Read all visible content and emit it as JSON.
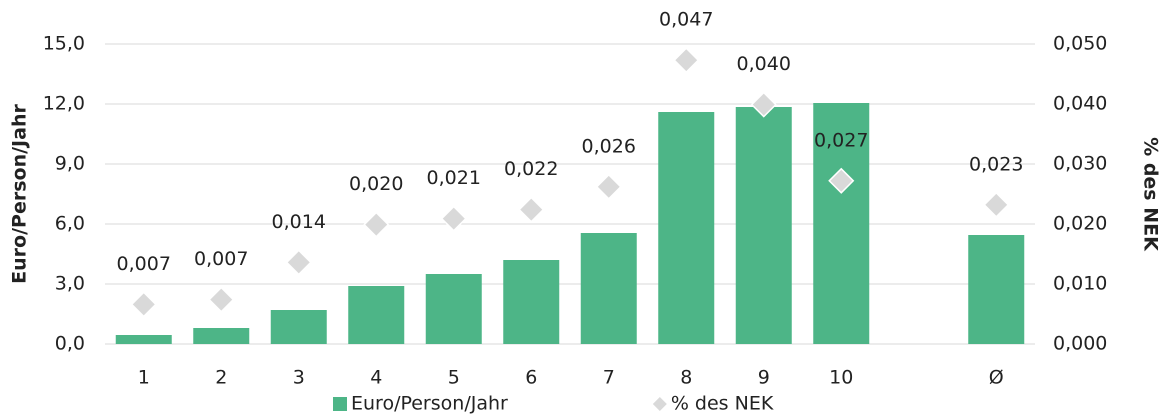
{
  "chart_data": {
    "type": "bar",
    "categories": [
      "1",
      "2",
      "3",
      "4",
      "5",
      "6",
      "7",
      "8",
      "9",
      "10",
      null,
      "Ø"
    ],
    "series": [
      {
        "name": "Euro/Person/Jahr",
        "type": "bar",
        "color": "#4db587",
        "values": [
          0.45,
          0.8,
          1.7,
          2.9,
          3.5,
          4.2,
          5.55,
          11.6,
          11.85,
          12.05,
          null,
          5.45
        ]
      },
      {
        "name": "% des NEK",
        "type": "scatter",
        "axis": "y2",
        "color": "#d9d9d9",
        "values": [
          0.0066,
          0.0074,
          0.0136,
          0.0199,
          0.0209,
          0.0224,
          0.0262,
          0.0473,
          0.0399,
          0.0272,
          null,
          0.0232
        ],
        "value_labels": [
          "0,007",
          "0,007",
          "0,014",
          "0,020",
          "0,021",
          "0,022",
          "0,026",
          "0,047",
          "0,040",
          "0,027",
          null,
          "0,023"
        ]
      }
    ],
    "ylabel": "Euro/Person/Jahr",
    "y2label": "% des NEK",
    "ylim": [
      0,
      15
    ],
    "yticks": [
      {
        "value": 0,
        "label": "0,0"
      },
      {
        "value": 3,
        "label": "3,0"
      },
      {
        "value": 6,
        "label": "6,0"
      },
      {
        "value": 9,
        "label": "9,0"
      },
      {
        "value": 12,
        "label": "12,0"
      },
      {
        "value": 15,
        "label": "15,0"
      }
    ],
    "y2lim": [
      0,
      0.05
    ],
    "y2ticks": [
      {
        "value": 0,
        "label": "0,000"
      },
      {
        "value": 0.01,
        "label": "0,010"
      },
      {
        "value": 0.02,
        "label": "0,020"
      },
      {
        "value": 0.03,
        "label": "0,030"
      },
      {
        "value": 0.04,
        "label": "0,040"
      },
      {
        "value": 0.05,
        "label": "0,050"
      }
    ],
    "grid": true,
    "legend": "bottom"
  }
}
